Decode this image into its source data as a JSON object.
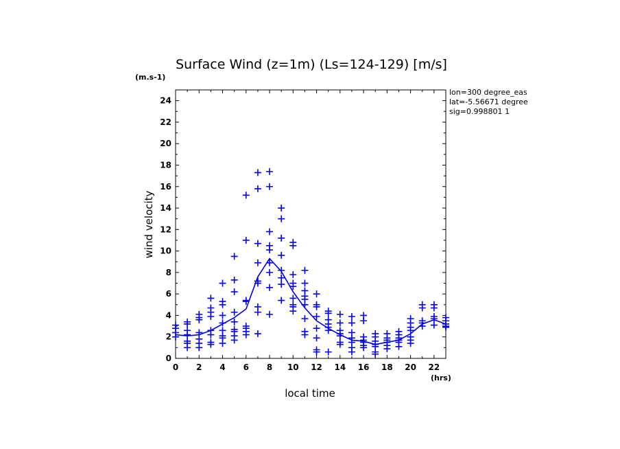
{
  "chart_data": {
    "type": "scatter",
    "title": "Surface Wind (z=1m) (Ls=124-129) [m/s]",
    "y_unit": "(m.s-1)",
    "x_unit": "(hrs)",
    "xlabel": "local time",
    "ylabel": "wind velocity",
    "xlim": [
      0,
      23
    ],
    "ylim": [
      0,
      25
    ],
    "xticks": [
      0,
      2,
      4,
      6,
      8,
      10,
      12,
      14,
      16,
      18,
      20,
      22
    ],
    "yticks": [
      0,
      2,
      4,
      6,
      8,
      10,
      12,
      14,
      16,
      18,
      20,
      22,
      24
    ],
    "grid": false,
    "color": "#0000ee",
    "info": [
      "lon=300 degree_eas",
      "lat=-5.56671 degree",
      "sig=0.998801 1"
    ],
    "series": [
      {
        "marker": "plus",
        "points": [
          [
            0,
            3.1
          ],
          [
            0,
            2.8
          ],
          [
            0,
            2.4
          ],
          [
            0,
            2.0
          ],
          [
            1,
            3.4
          ],
          [
            1,
            3.2
          ],
          [
            1,
            2.6
          ],
          [
            1,
            2.2
          ],
          [
            1,
            1.6
          ],
          [
            1,
            1.4
          ],
          [
            1,
            1.0
          ],
          [
            2,
            4.1
          ],
          [
            2,
            3.8
          ],
          [
            2,
            3.6
          ],
          [
            2,
            2.4
          ],
          [
            2,
            1.8
          ],
          [
            2,
            1.4
          ],
          [
            2,
            1.0
          ],
          [
            3,
            5.6
          ],
          [
            3,
            4.7
          ],
          [
            3,
            4.3
          ],
          [
            3,
            3.9
          ],
          [
            3,
            2.6
          ],
          [
            3,
            2.2
          ],
          [
            3,
            1.5
          ],
          [
            3,
            1.3
          ],
          [
            4,
            7.0
          ],
          [
            4,
            5.3
          ],
          [
            4,
            5.0
          ],
          [
            4,
            4.0
          ],
          [
            4,
            3.3
          ],
          [
            4,
            2.6
          ],
          [
            4,
            2.1
          ],
          [
            4,
            1.9
          ],
          [
            4,
            1.4
          ],
          [
            5,
            9.5
          ],
          [
            5,
            7.3
          ],
          [
            5,
            6.2
          ],
          [
            5,
            4.3
          ],
          [
            5,
            3.4
          ],
          [
            5,
            2.7
          ],
          [
            5,
            2.5
          ],
          [
            5,
            2.1
          ],
          [
            5,
            1.7
          ],
          [
            6,
            15.2
          ],
          [
            6,
            11.0
          ],
          [
            6,
            5.4
          ],
          [
            6,
            5.3
          ],
          [
            6,
            3.0
          ],
          [
            6,
            2.8
          ],
          [
            6,
            2.5
          ],
          [
            6,
            2.2
          ],
          [
            7,
            17.3
          ],
          [
            7,
            15.8
          ],
          [
            7,
            10.7
          ],
          [
            7,
            8.9
          ],
          [
            7,
            7.2
          ],
          [
            7,
            7.0
          ],
          [
            7,
            4.8
          ],
          [
            7,
            4.3
          ],
          [
            7,
            2.3
          ],
          [
            8,
            17.4
          ],
          [
            8,
            16.0
          ],
          [
            8,
            11.8
          ],
          [
            8,
            10.5
          ],
          [
            8,
            10.1
          ],
          [
            8,
            8.9
          ],
          [
            8,
            8.0
          ],
          [
            8,
            6.6
          ],
          [
            8,
            4.1
          ],
          [
            9,
            14.0
          ],
          [
            9,
            13.0
          ],
          [
            9,
            11.2
          ],
          [
            9,
            9.6
          ],
          [
            9,
            8.2
          ],
          [
            9,
            7.5
          ],
          [
            9,
            6.9
          ],
          [
            9,
            5.4
          ],
          [
            10,
            10.8
          ],
          [
            10,
            10.5
          ],
          [
            10,
            7.8
          ],
          [
            10,
            7.0
          ],
          [
            10,
            6.7
          ],
          [
            10,
            5.6
          ],
          [
            10,
            5.0
          ],
          [
            10,
            4.8
          ],
          [
            10,
            4.4
          ],
          [
            11,
            8.2
          ],
          [
            11,
            7.0
          ],
          [
            11,
            6.3
          ],
          [
            11,
            5.8
          ],
          [
            11,
            5.5
          ],
          [
            11,
            5.0
          ],
          [
            11,
            3.7
          ],
          [
            11,
            2.5
          ],
          [
            11,
            2.2
          ],
          [
            12,
            6.0
          ],
          [
            12,
            5.0
          ],
          [
            12,
            4.8
          ],
          [
            12,
            3.9
          ],
          [
            12,
            2.8
          ],
          [
            12,
            1.9
          ],
          [
            12,
            0.8
          ],
          [
            12,
            0.6
          ],
          [
            13,
            4.4
          ],
          [
            13,
            4.2
          ],
          [
            13,
            3.6
          ],
          [
            13,
            3.2
          ],
          [
            13,
            2.9
          ],
          [
            13,
            2.6
          ],
          [
            13,
            0.6
          ],
          [
            14,
            4.1
          ],
          [
            14,
            3.3
          ],
          [
            14,
            2.6
          ],
          [
            14,
            2.3
          ],
          [
            14,
            2.1
          ],
          [
            14,
            1.5
          ],
          [
            14,
            1.3
          ],
          [
            15,
            3.9
          ],
          [
            15,
            3.3
          ],
          [
            15,
            2.4
          ],
          [
            15,
            1.9
          ],
          [
            15,
            1.5
          ],
          [
            15,
            1.0
          ],
          [
            15,
            0.6
          ],
          [
            16,
            4.0
          ],
          [
            16,
            3.5
          ],
          [
            16,
            2.0
          ],
          [
            16,
            1.7
          ],
          [
            16,
            1.5
          ],
          [
            16,
            1.2
          ],
          [
            16,
            1.0
          ],
          [
            17,
            2.3
          ],
          [
            17,
            2.0
          ],
          [
            17,
            1.6
          ],
          [
            17,
            1.3
          ],
          [
            17,
            1.1
          ],
          [
            17,
            0.6
          ],
          [
            17,
            0.4
          ],
          [
            18,
            2.3
          ],
          [
            18,
            1.9
          ],
          [
            18,
            1.7
          ],
          [
            18,
            1.5
          ],
          [
            18,
            1.2
          ],
          [
            18,
            0.9
          ],
          [
            19,
            2.5
          ],
          [
            19,
            2.2
          ],
          [
            19,
            1.9
          ],
          [
            19,
            1.7
          ],
          [
            19,
            1.5
          ],
          [
            19,
            1.1
          ],
          [
            20,
            3.7
          ],
          [
            20,
            3.3
          ],
          [
            20,
            2.9
          ],
          [
            20,
            2.6
          ],
          [
            20,
            2.0
          ],
          [
            20,
            1.7
          ],
          [
            20,
            1.4
          ],
          [
            21,
            5.0
          ],
          [
            21,
            4.7
          ],
          [
            21,
            3.5
          ],
          [
            21,
            3.3
          ],
          [
            21,
            3.0
          ],
          [
            22,
            5.0
          ],
          [
            22,
            4.7
          ],
          [
            22,
            3.9
          ],
          [
            22,
            3.7
          ],
          [
            22,
            3.1
          ],
          [
            23,
            3.8
          ],
          [
            23,
            3.5
          ],
          [
            23,
            3.2
          ],
          [
            23,
            3.0
          ],
          [
            23,
            2.9
          ]
        ]
      },
      {
        "marker": "line",
        "x": [
          0,
          1,
          2,
          3,
          4,
          5,
          6,
          7,
          8,
          9,
          10,
          11,
          12,
          13,
          14,
          15,
          16,
          17,
          18,
          19,
          20,
          21,
          22,
          23
        ],
        "values": [
          2.2,
          2.1,
          2.2,
          2.6,
          3.2,
          3.8,
          4.6,
          7.6,
          9.3,
          8.1,
          6.2,
          4.7,
          3.5,
          2.8,
          2.2,
          1.7,
          1.6,
          1.3,
          1.5,
          1.7,
          2.3,
          3.2,
          3.6,
          3.2
        ]
      }
    ]
  }
}
